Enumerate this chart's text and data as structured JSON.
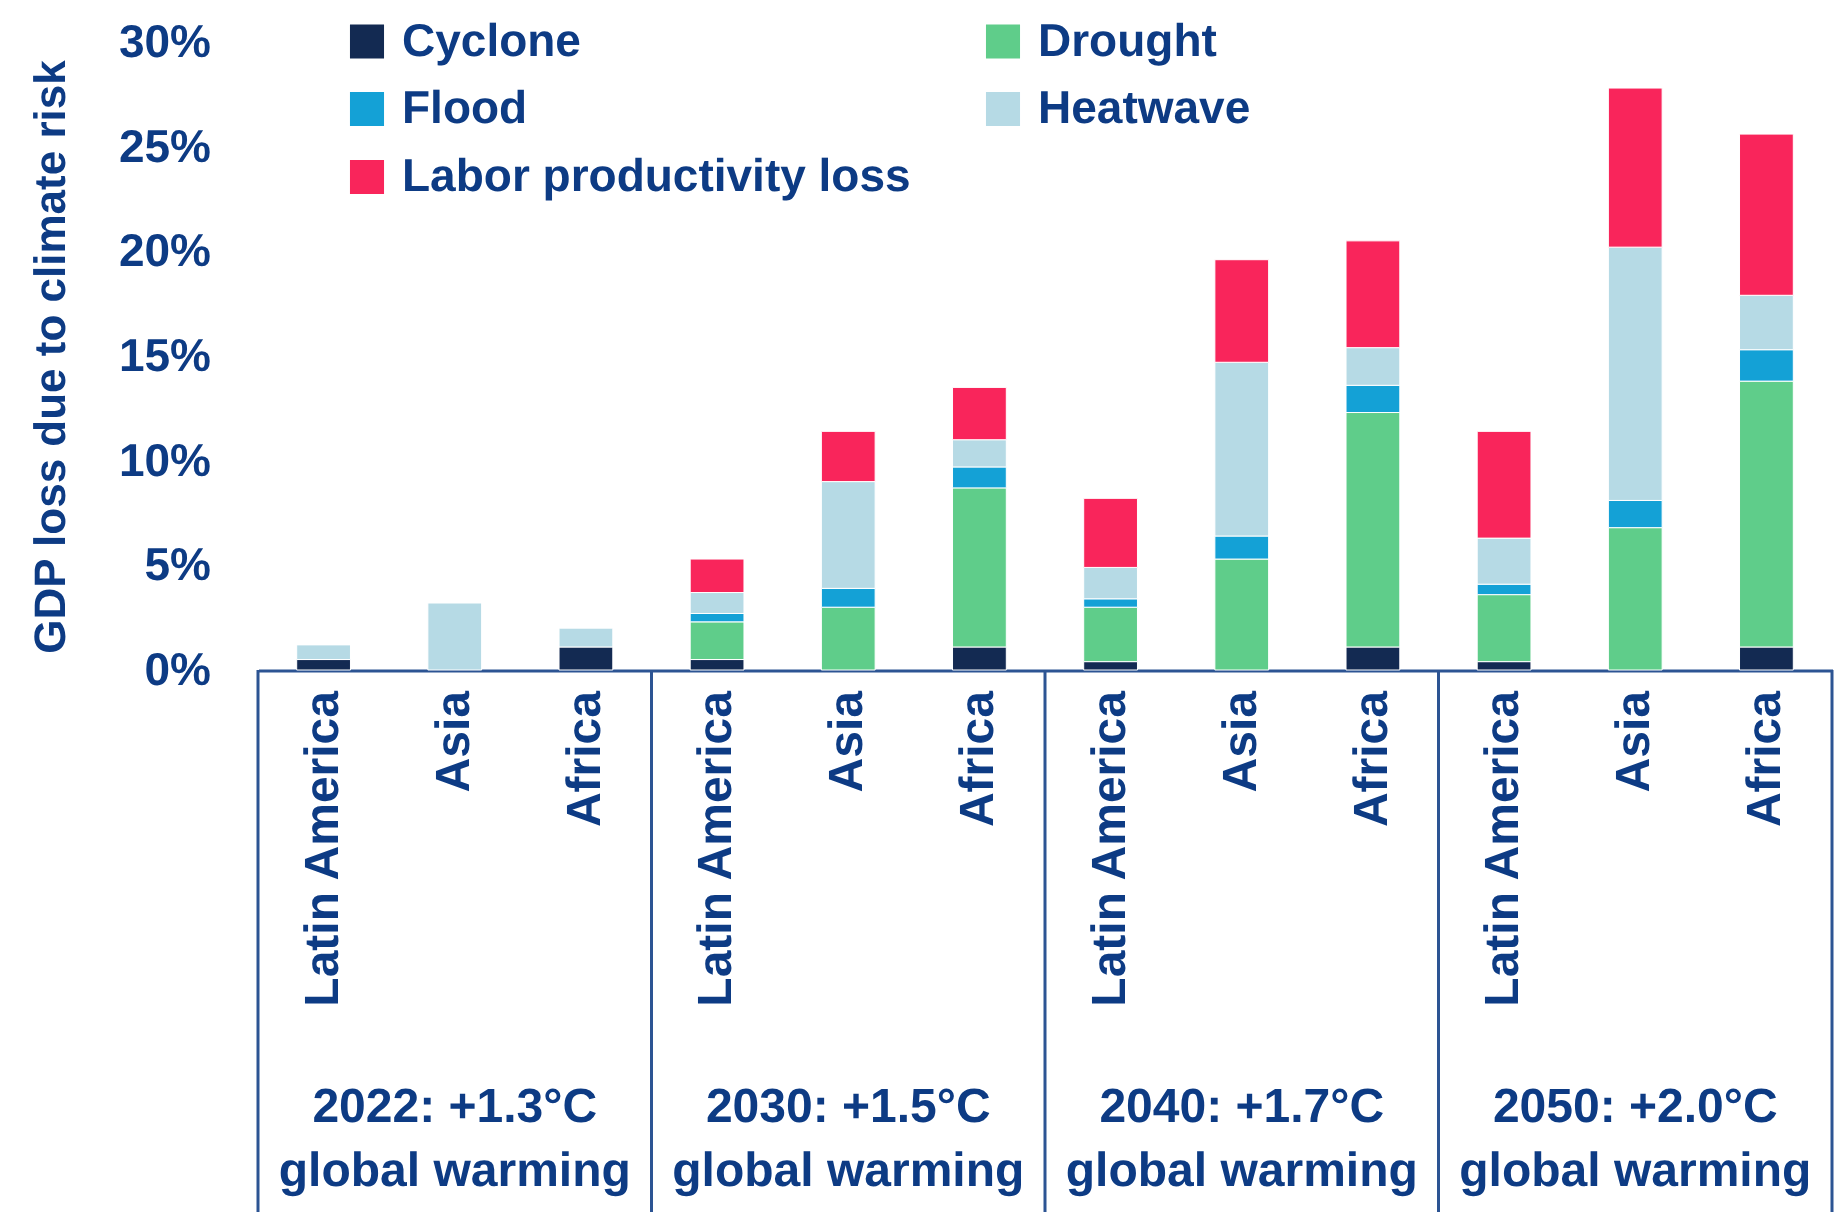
{
  "chart_data": {
    "type": "bar",
    "stacked": true,
    "ylabel": "GDP loss due to climate risk",
    "categories": [
      "Latin America",
      "Asia",
      "Africa",
      "Latin America",
      "Asia",
      "Africa",
      "Latin America",
      "Asia",
      "Africa",
      "Latin America",
      "Asia",
      "Africa"
    ],
    "series": [
      {
        "name": "Cyclone",
        "color": "#132a52",
        "values": [
          0.5,
          null,
          1.1,
          0.5,
          null,
          1.1,
          0.4,
          null,
          1.1,
          0.4,
          null,
          1.1
        ]
      },
      {
        "name": "Drought",
        "color": "#5fcd8a",
        "values": [
          null,
          null,
          null,
          1.8,
          3.0,
          7.6,
          2.6,
          5.3,
          11.2,
          3.2,
          6.8,
          12.7
        ]
      },
      {
        "name": "Flood",
        "color": "#14a1d6",
        "values": [
          null,
          null,
          null,
          0.4,
          0.9,
          1.0,
          0.4,
          1.1,
          1.3,
          0.5,
          1.3,
          1.5
        ]
      },
      {
        "name": "Heatwave",
        "color": "#b6dae5",
        "values": [
          0.7,
          3.2,
          0.9,
          1.0,
          5.1,
          1.3,
          1.5,
          8.3,
          1.8,
          2.2,
          12.1,
          2.6
        ]
      },
      {
        "name": "Labor productivity loss",
        "color": "#f9255b",
        "values": [
          null,
          null,
          null,
          1.6,
          2.4,
          2.5,
          3.3,
          4.9,
          5.1,
          5.1,
          7.6,
          7.7
        ]
      }
    ],
    "ylim": [
      0,
      30
    ],
    "yticks": [
      {
        "value": 0,
        "label": "0%"
      },
      {
        "value": 5,
        "label": "5%"
      },
      {
        "value": 10,
        "label": "10%"
      },
      {
        "value": 15,
        "label": "15%"
      },
      {
        "value": 20,
        "label": "20%"
      },
      {
        "value": 25,
        "label": "25%"
      },
      {
        "value": 30,
        "label": "30%"
      }
    ],
    "legend": "top left",
    "annotations": [
      "2022: +1.3°C\nglobal warming",
      "2030: +1.5°C\nglobal warming",
      "2040: +1.7°C\nglobal warming",
      "2050: +2.0°C\nglobal warming"
    ]
  }
}
